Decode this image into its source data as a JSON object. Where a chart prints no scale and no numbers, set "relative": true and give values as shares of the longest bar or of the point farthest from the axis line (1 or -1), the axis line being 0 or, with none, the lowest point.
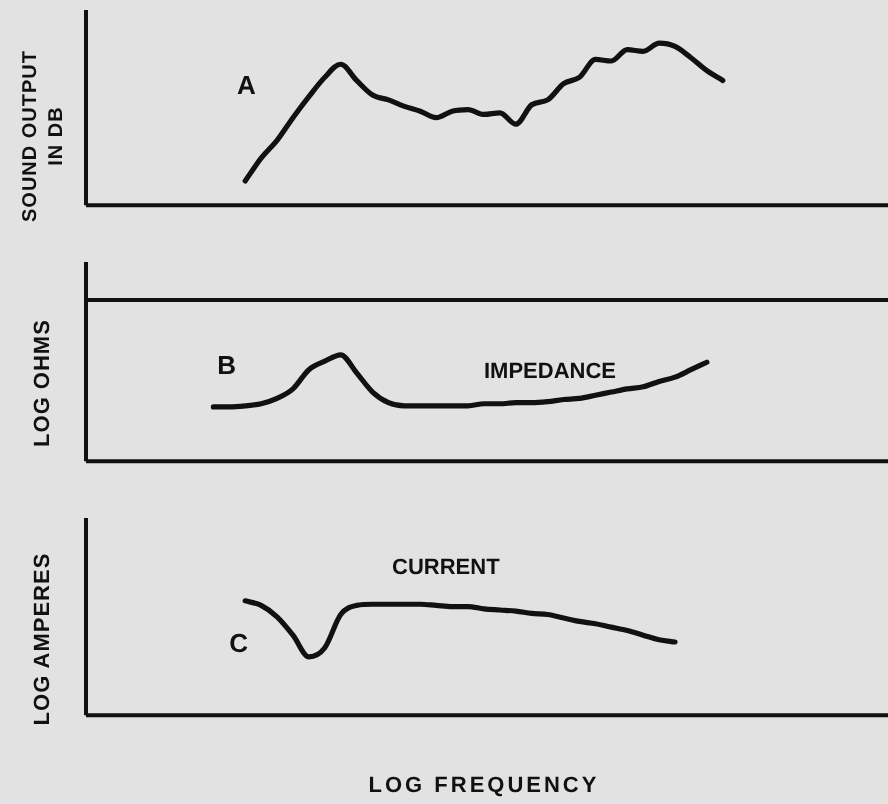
{
  "chart_data": [
    {
      "type": "line",
      "relative": true,
      "ylabel": "SOUND OUTPUT IN DB",
      "legend": false,
      "marker": "none",
      "categories": [
        null,
        null,
        null,
        null,
        null,
        null,
        null,
        null,
        null,
        null,
        null,
        null,
        null,
        null,
        null,
        null,
        null,
        null,
        null,
        null,
        null,
        null,
        null,
        null,
        null,
        null,
        null,
        null,
        null,
        null,
        null,
        null,
        null,
        null,
        null,
        null,
        null,
        null,
        null,
        null,
        null,
        null,
        null,
        null,
        null,
        null,
        null,
        null,
        null,
        null,
        null
      ],
      "series": [
        {
          "color": "#111111",
          "values": [
            null,
            null,
            null,
            null,
            null,
            null,
            null,
            null,
            null,
            null,
            0.15,
            0.29,
            0.4,
            0.54,
            0.67,
            0.79,
            0.87,
            0.77,
            0.68,
            0.65,
            0.61,
            0.58,
            0.54,
            0.58,
            0.59,
            0.56,
            0.57,
            0.5,
            0.62,
            0.65,
            0.75,
            0.79,
            0.9,
            0.89,
            0.96,
            0.95,
            1,
            0.98,
            0.91,
            0.83,
            0.77,
            null,
            null,
            null,
            null,
            null,
            null,
            null,
            null,
            null,
            null
          ]
        }
      ],
      "annotations": [
        "A"
      ]
    },
    {
      "type": "line",
      "relative": true,
      "ylabel": "LOG OHMS",
      "legend": false,
      "marker": "none",
      "categories": [
        null,
        null,
        null,
        null,
        null,
        null,
        null,
        null,
        null,
        null,
        null,
        null,
        null,
        null,
        null,
        null,
        null,
        null,
        null,
        null,
        null,
        null,
        null,
        null,
        null,
        null,
        null,
        null,
        null,
        null,
        null,
        null,
        null,
        null,
        null,
        null,
        null,
        null,
        null,
        null,
        null,
        null,
        null,
        null,
        null,
        null,
        null,
        null,
        null,
        null,
        null
      ],
      "series": [
        {
          "color": "#111111",
          "values": [
            null,
            null,
            null,
            null,
            null,
            null,
            null,
            null,
            0.51,
            0.51,
            0.52,
            0.54,
            0.59,
            0.68,
            0.86,
            0.94,
            1,
            0.83,
            0.65,
            0.55,
            0.52,
            0.52,
            0.52,
            0.52,
            0.52,
            0.54,
            0.54,
            0.55,
            0.55,
            0.56,
            0.58,
            0.59,
            0.62,
            0.65,
            0.68,
            0.7,
            0.75,
            0.79,
            0.86,
            0.93,
            null,
            null,
            null,
            null,
            null,
            null,
            null,
            null,
            null,
            null,
            null
          ]
        }
      ],
      "annotations": [
        "B",
        "IMPEDANCE"
      ]
    },
    {
      "type": "line",
      "relative": true,
      "ylabel": "LOG AMPERES",
      "xlabel": "LOG FREQUENCY",
      "legend": false,
      "marker": "none",
      "categories": [
        null,
        null,
        null,
        null,
        null,
        null,
        null,
        null,
        null,
        null,
        null,
        null,
        null,
        null,
        null,
        null,
        null,
        null,
        null,
        null,
        null,
        null,
        null,
        null,
        null,
        null,
        null,
        null,
        null,
        null,
        null,
        null,
        null,
        null,
        null,
        null,
        null,
        null,
        null,
        null,
        null,
        null,
        null,
        null,
        null,
        null,
        null,
        null,
        null,
        null,
        null
      ],
      "series": [
        {
          "color": "#111111",
          "values": [
            null,
            null,
            null,
            null,
            null,
            null,
            null,
            null,
            null,
            null,
            1,
            0.96,
            0.86,
            0.7,
            0.51,
            0.59,
            0.88,
            0.96,
            0.97,
            0.97,
            0.97,
            0.97,
            0.96,
            0.95,
            0.95,
            0.93,
            0.92,
            0.91,
            0.89,
            0.88,
            0.85,
            0.82,
            0.8,
            0.77,
            0.74,
            0.7,
            0.66,
            0.64,
            null,
            null,
            null,
            null,
            null,
            null,
            null,
            null,
            null,
            null,
            null,
            null,
            null
          ]
        }
      ],
      "annotations": [
        "C",
        "CURRENT"
      ]
    }
  ]
}
